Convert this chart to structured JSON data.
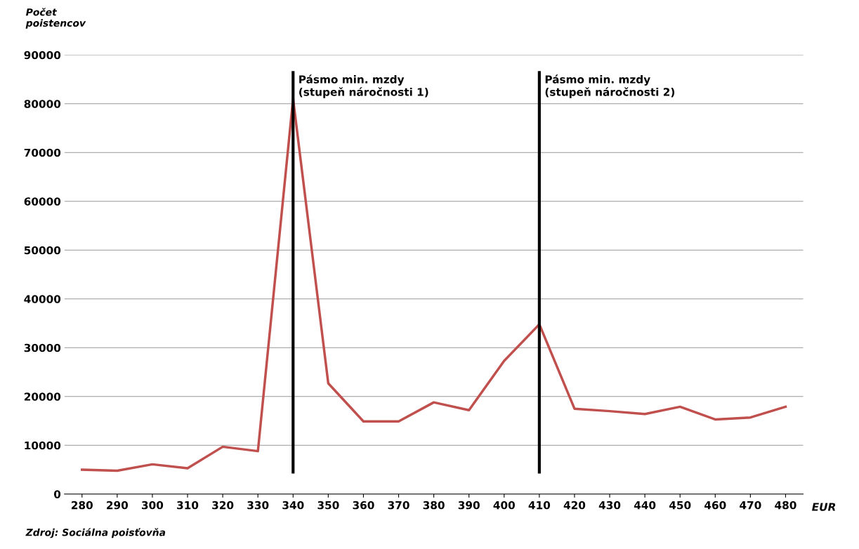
{
  "chart_data": {
    "type": "line",
    "ylabel": "Počet\npoistencov",
    "xlabel": "EUR",
    "categories": [
      "280",
      "290",
      "300",
      "310",
      "320",
      "330",
      "340",
      "350",
      "360",
      "370",
      "380",
      "390",
      "400",
      "410",
      "420",
      "430",
      "440",
      "450",
      "460",
      "470",
      "480"
    ],
    "series": [
      {
        "color": "#c0504d",
        "values": [
          5000,
          4800,
          6100,
          5300,
          9700,
          8800,
          81000,
          22700,
          14900,
          14900,
          18800,
          17200,
          27300,
          34800,
          17500,
          17000,
          16400,
          17900,
          15300,
          15700,
          17900
        ]
      }
    ],
    "ylim": [
      0,
      90000
    ],
    "yticks": [
      0,
      10000,
      20000,
      30000,
      40000,
      50000,
      60000,
      70000,
      80000,
      90000
    ],
    "grid": "y",
    "ref_lines": [
      {
        "axis": "x",
        "value": "340",
        "label": "Pásmo min. mzdy\n(stupeň náročnosti 1)",
        "color": "#000000"
      },
      {
        "axis": "x",
        "value": "410",
        "label": "Pásmo min. mzdy\n(stupeň náročnosti 2)",
        "color": "#000000"
      }
    ],
    "annotations": [
      "Zdroj: Sociálna poisťovňa"
    ]
  }
}
